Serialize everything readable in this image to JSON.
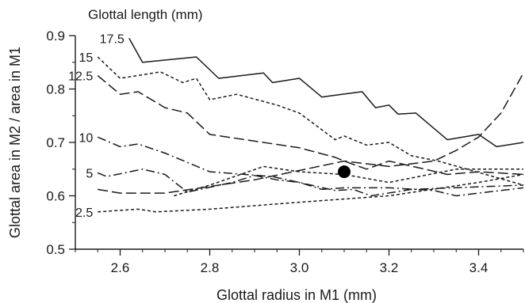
{
  "chart_data": {
    "type": "line",
    "title": "",
    "xlabel": "Glottal radius in M1 (mm)",
    "ylabel": "Glottal area in M2 / area in M1",
    "xlim": [
      2.5,
      3.5
    ],
    "ylim": [
      0.5,
      0.9
    ],
    "x_ticks": [
      2.6,
      2.8,
      3.0,
      3.2,
      3.4
    ],
    "y_ticks": [
      0.5,
      0.6,
      0.7,
      0.8,
      0.9
    ],
    "x_tick_labels": [
      "2.6",
      "2.8",
      "3.0",
      "3.2",
      "3.4"
    ],
    "y_tick_labels": [
      "0.5",
      "0.6",
      "0.7",
      "0.8",
      "0.9"
    ],
    "grid": false,
    "legend_title": "Glottal length (mm)",
    "series": [
      {
        "name": "17.5",
        "dash": "solid",
        "x": [
          2.62,
          2.65,
          2.77,
          2.82,
          2.92,
          2.94,
          3.0,
          3.05,
          3.14,
          3.17,
          3.2,
          3.22,
          3.26,
          3.33,
          3.4,
          3.44,
          3.5
        ],
        "y": [
          0.895,
          0.85,
          0.86,
          0.82,
          0.83,
          0.812,
          0.82,
          0.785,
          0.795,
          0.765,
          0.77,
          0.753,
          0.755,
          0.705,
          0.715,
          0.692,
          0.7
        ]
      },
      {
        "name": "15",
        "dash": "short-dash",
        "x": [
          2.55,
          2.6,
          2.69,
          2.74,
          2.77,
          2.8,
          2.86,
          2.95,
          3.0,
          3.08,
          3.1,
          3.15,
          3.2,
          3.25,
          3.31,
          3.5
        ],
        "y": [
          0.86,
          0.82,
          0.832,
          0.812,
          0.82,
          0.78,
          0.79,
          0.77,
          0.755,
          0.705,
          0.712,
          0.695,
          0.7,
          0.675,
          0.665,
          0.62
        ]
      },
      {
        "name": "12.5",
        "dash": "long-dash",
        "x": [
          2.55,
          2.6,
          2.64,
          2.7,
          2.75,
          2.8,
          3.0,
          3.08,
          3.1,
          3.15,
          3.2,
          3.28,
          3.33,
          3.4,
          3.5
        ],
        "y": [
          0.825,
          0.79,
          0.795,
          0.765,
          0.755,
          0.715,
          0.69,
          0.672,
          0.665,
          0.65,
          0.665,
          0.65,
          0.64,
          0.645,
          0.64
        ]
      },
      {
        "name": "10",
        "dash": "dash-dot",
        "x": [
          2.55,
          2.6,
          2.64,
          2.7,
          2.8,
          2.94,
          3.0,
          3.08,
          3.12,
          3.16,
          3.25,
          3.5
        ],
        "y": [
          0.71,
          0.692,
          0.697,
          0.68,
          0.645,
          0.636,
          0.625,
          0.61,
          0.612,
          0.6,
          0.612,
          0.62
        ]
      },
      {
        "name": "5",
        "dash": "dash-dot",
        "x": [
          2.55,
          2.57,
          2.65,
          2.7,
          2.73,
          2.75,
          2.85,
          2.9,
          2.95,
          3.0,
          3.05,
          3.1,
          3.2,
          3.3,
          3.35,
          3.4,
          3.5
        ],
        "y": [
          0.643,
          0.636,
          0.65,
          0.64,
          0.62,
          0.607,
          0.625,
          0.638,
          0.63,
          0.625,
          0.612,
          0.615,
          0.615,
          0.61,
          0.6,
          0.605,
          0.615
        ]
      },
      {
        "name": "",
        "dash": "long-dash",
        "x": [
          2.55,
          2.6,
          2.7,
          2.9,
          3.1,
          3.2,
          3.3,
          3.35,
          3.4,
          3.45,
          3.5
        ],
        "y": [
          0.612,
          0.605,
          0.605,
          0.63,
          0.665,
          0.655,
          0.665,
          0.685,
          0.71,
          0.755,
          0.83
        ]
      },
      {
        "name": "",
        "dash": "short-dash",
        "x": [
          2.72,
          2.8,
          2.92,
          3.0,
          3.1,
          3.2,
          3.35,
          3.5
        ],
        "y": [
          0.6,
          0.62,
          0.655,
          0.645,
          0.64,
          0.625,
          0.65,
          0.65
        ]
      },
      {
        "name": "2.5",
        "dash": "short-dash",
        "x": [
          2.55,
          2.64,
          2.68,
          2.8,
          3.0,
          3.2,
          3.4,
          3.5
        ],
        "y": [
          0.57,
          0.575,
          0.57,
          0.575,
          0.588,
          0.6,
          0.625,
          0.64
        ]
      }
    ],
    "marker": {
      "x": 3.1,
      "y": 0.645
    }
  }
}
